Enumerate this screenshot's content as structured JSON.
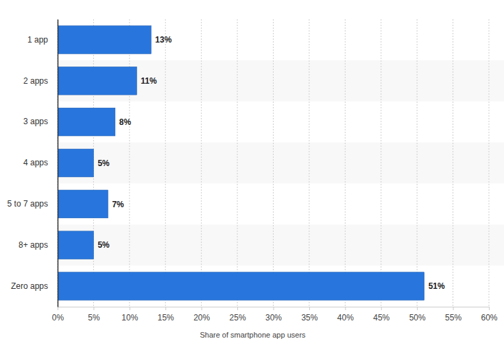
{
  "chart_data": {
    "type": "bar",
    "orientation": "horizontal",
    "categories": [
      "1 app",
      "2 apps",
      "3 apps",
      "4 apps",
      "5 to 7 apps",
      "8+ apps",
      "Zero apps"
    ],
    "values": [
      13,
      11,
      8,
      5,
      7,
      5,
      51
    ],
    "value_labels": [
      "13%",
      "11%",
      "8%",
      "5%",
      "7%",
      "5%",
      "51%"
    ],
    "data_labels": true,
    "color": "#2876dd",
    "xlabel": "Share of smartphone app users",
    "xlim": [
      0,
      60
    ],
    "xticks": [
      {
        "value": 0,
        "label": "0%"
      },
      {
        "value": 5,
        "label": "5%"
      },
      {
        "value": 10,
        "label": "10%"
      },
      {
        "value": 15,
        "label": "15%"
      },
      {
        "value": 20,
        "label": "20%"
      },
      {
        "value": 25,
        "label": "25%"
      },
      {
        "value": 30,
        "label": "30%"
      },
      {
        "value": 35,
        "label": "35%"
      },
      {
        "value": 40,
        "label": "40%"
      },
      {
        "value": 45,
        "label": "45%"
      },
      {
        "value": 50,
        "label": "50%"
      },
      {
        "value": 55,
        "label": "55%"
      },
      {
        "value": 60,
        "label": "60%"
      }
    ],
    "grid": true
  }
}
